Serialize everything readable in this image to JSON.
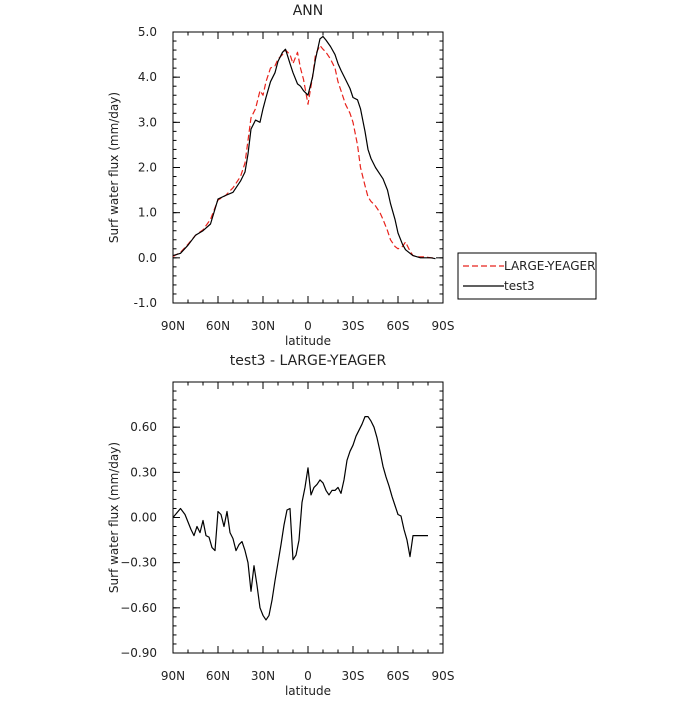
{
  "chart_data": [
    {
      "type": "line",
      "title": "ANN",
      "xlabel": "latitude",
      "ylabel": "Surf water flux (mm/day)",
      "xlim": [
        90,
        -90
      ],
      "ylim": [
        -1.0,
        5.0
      ],
      "xticks": [
        90,
        60,
        30,
        0,
        -30,
        -60,
        -90
      ],
      "xtick_labels": [
        "90N",
        "60N",
        "30N",
        "0",
        "30S",
        "60S",
        "90S"
      ],
      "yticks": [
        -1.0,
        0.0,
        1.0,
        2.0,
        3.0,
        4.0,
        5.0
      ],
      "ytick_labels": [
        "-1.0",
        "0.0",
        "1.0",
        "2.0",
        "3.0",
        "4.0",
        "5.0"
      ],
      "grid": false,
      "legend": "right",
      "series": [
        {
          "name": "LARGE-YEAGER",
          "color": "#e8231c",
          "dash": "dashed",
          "x": [
            90,
            85,
            80,
            75,
            70,
            65,
            60,
            55,
            50,
            45,
            42,
            40,
            38,
            35,
            32,
            30,
            28,
            25,
            22,
            20,
            17,
            15,
            12,
            10,
            7,
            5,
            3,
            0,
            -3,
            -5,
            -8,
            -10,
            -12,
            -15,
            -18,
            -20,
            -22,
            -25,
            -28,
            -30,
            -33,
            -35,
            -38,
            -40,
            -42,
            -45,
            -48,
            -50,
            -53,
            -55,
            -58,
            -60,
            -63,
            -65,
            -68,
            -70,
            -73,
            -75,
            -78,
            -80,
            -82,
            -85
          ],
          "y": [
            0.03,
            0.12,
            0.3,
            0.5,
            0.62,
            0.85,
            1.28,
            1.38,
            1.55,
            1.8,
            2.1,
            2.6,
            3.1,
            3.3,
            3.7,
            3.6,
            3.9,
            4.2,
            4.25,
            4.4,
            4.5,
            4.6,
            4.5,
            4.3,
            4.55,
            4.2,
            3.95,
            3.4,
            4.0,
            4.5,
            4.7,
            4.62,
            4.55,
            4.4,
            4.2,
            3.9,
            3.7,
            3.4,
            3.2,
            3.0,
            2.5,
            2.0,
            1.6,
            1.35,
            1.25,
            1.15,
            1.0,
            0.85,
            0.6,
            0.4,
            0.25,
            0.2,
            0.25,
            0.35,
            0.15,
            0.05,
            0.02,
            0.02,
            0.02,
            0.01,
            0.0,
            0.0
          ]
        },
        {
          "name": "test3",
          "color": "#000000",
          "dash": "solid",
          "x": [
            90,
            85,
            80,
            75,
            70,
            65,
            60,
            55,
            50,
            45,
            42,
            40,
            38,
            35,
            32,
            30,
            28,
            25,
            22,
            20,
            17,
            15,
            12,
            10,
            7,
            5,
            3,
            0,
            -3,
            -5,
            -8,
            -10,
            -12,
            -15,
            -18,
            -20,
            -22,
            -25,
            -28,
            -30,
            -33,
            -35,
            -38,
            -40,
            -42,
            -45,
            -48,
            -50,
            -53,
            -55,
            -58,
            -60,
            -63,
            -65,
            -68,
            -70,
            -73,
            -75,
            -78,
            -80,
            -82,
            -85
          ],
          "y": [
            0.05,
            0.1,
            0.28,
            0.5,
            0.6,
            0.75,
            1.3,
            1.38,
            1.45,
            1.7,
            1.9,
            2.3,
            2.85,
            3.05,
            3.0,
            3.3,
            3.55,
            3.9,
            4.1,
            4.35,
            4.55,
            4.62,
            4.3,
            4.1,
            3.85,
            3.8,
            3.7,
            3.6,
            4.0,
            4.4,
            4.85,
            4.9,
            4.82,
            4.68,
            4.5,
            4.3,
            4.15,
            3.95,
            3.75,
            3.55,
            3.5,
            3.3,
            2.8,
            2.4,
            2.2,
            2.0,
            1.85,
            1.75,
            1.5,
            1.2,
            0.85,
            0.55,
            0.3,
            0.18,
            0.1,
            0.05,
            0.02,
            0.0,
            0.0,
            0.0,
            0.0,
            -0.02
          ]
        }
      ]
    },
    {
      "type": "line",
      "title": "test3 - LARGE-YEAGER",
      "xlabel": "latitude",
      "ylabel": "Surf water flux (mm/day)",
      "xlim": [
        90,
        -90
      ],
      "ylim": [
        -0.9,
        0.9
      ],
      "xticks": [
        90,
        60,
        30,
        0,
        -30,
        -60,
        -90
      ],
      "xtick_labels": [
        "90N",
        "60N",
        "30N",
        "0",
        "30S",
        "60S",
        "90S"
      ],
      "yticks": [
        -0.9,
        -0.6,
        -0.3,
        0.0,
        0.3,
        0.6
      ],
      "ytick_labels": [
        "−0.90",
        "−0.60",
        "−0.30",
        "0.00",
        "0.30",
        "0.60"
      ],
      "grid": false,
      "series": [
        {
          "color": "#000000",
          "dash": "solid",
          "x": [
            90,
            85,
            82,
            80,
            78,
            76,
            74,
            72,
            70,
            68,
            66,
            64,
            62,
            60,
            58,
            56,
            54,
            52,
            50,
            48,
            46,
            44,
            42,
            40,
            38,
            36,
            34,
            32,
            30,
            28,
            26,
            24,
            22,
            20,
            18,
            16,
            14,
            12,
            10,
            8,
            6,
            4,
            2,
            0,
            -2,
            -4,
            -6,
            -8,
            -10,
            -12,
            -14,
            -16,
            -18,
            -20,
            -22,
            -24,
            -26,
            -28,
            -30,
            -32,
            -34,
            -36,
            -38,
            -40,
            -42,
            -44,
            -46,
            -48,
            -50,
            -52,
            -54,
            -56,
            -58,
            -60,
            -62,
            -64,
            -66,
            -68,
            -70,
            -72,
            -74,
            -76,
            -78,
            -80
          ],
          "y": [
            0.0,
            0.06,
            0.02,
            -0.03,
            -0.08,
            -0.12,
            -0.06,
            -0.1,
            -0.02,
            -0.12,
            -0.13,
            -0.2,
            -0.22,
            0.04,
            0.02,
            -0.06,
            0.04,
            -0.1,
            -0.14,
            -0.22,
            -0.18,
            -0.16,
            -0.22,
            -0.3,
            -0.49,
            -0.32,
            -0.45,
            -0.6,
            -0.65,
            -0.68,
            -0.65,
            -0.55,
            -0.42,
            -0.3,
            -0.18,
            -0.05,
            0.05,
            0.06,
            -0.28,
            -0.25,
            -0.15,
            0.1,
            0.2,
            0.33,
            0.15,
            0.2,
            0.22,
            0.25,
            0.23,
            0.18,
            0.15,
            0.18,
            0.18,
            0.2,
            0.16,
            0.25,
            0.38,
            0.44,
            0.48,
            0.54,
            0.58,
            0.62,
            0.67,
            0.67,
            0.64,
            0.6,
            0.53,
            0.44,
            0.34,
            0.27,
            0.21,
            0.14,
            0.08,
            0.02,
            0.01,
            -0.08,
            -0.15,
            -0.26,
            -0.12,
            -0.12,
            -0.12,
            -0.12,
            -0.12,
            -0.12
          ]
        }
      ]
    }
  ]
}
